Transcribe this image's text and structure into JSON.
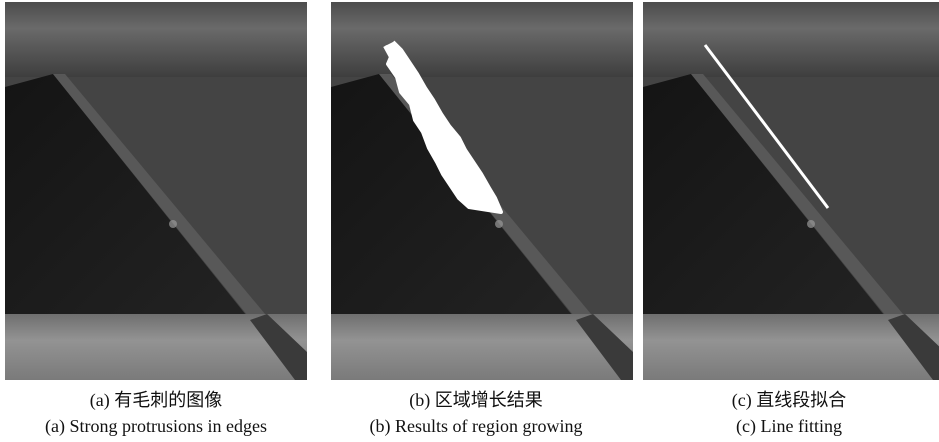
{
  "panels": [
    {
      "caption_cn": "(a)  有毛刺的图像",
      "caption_en": "(a)  Strong protrusions in edges"
    },
    {
      "caption_cn": "(b)  区域增长结果",
      "caption_en": "(b)  Results of region growing"
    },
    {
      "caption_cn": "(c)  直线段拟合",
      "caption_en": "(c)  Line fitting"
    }
  ]
}
